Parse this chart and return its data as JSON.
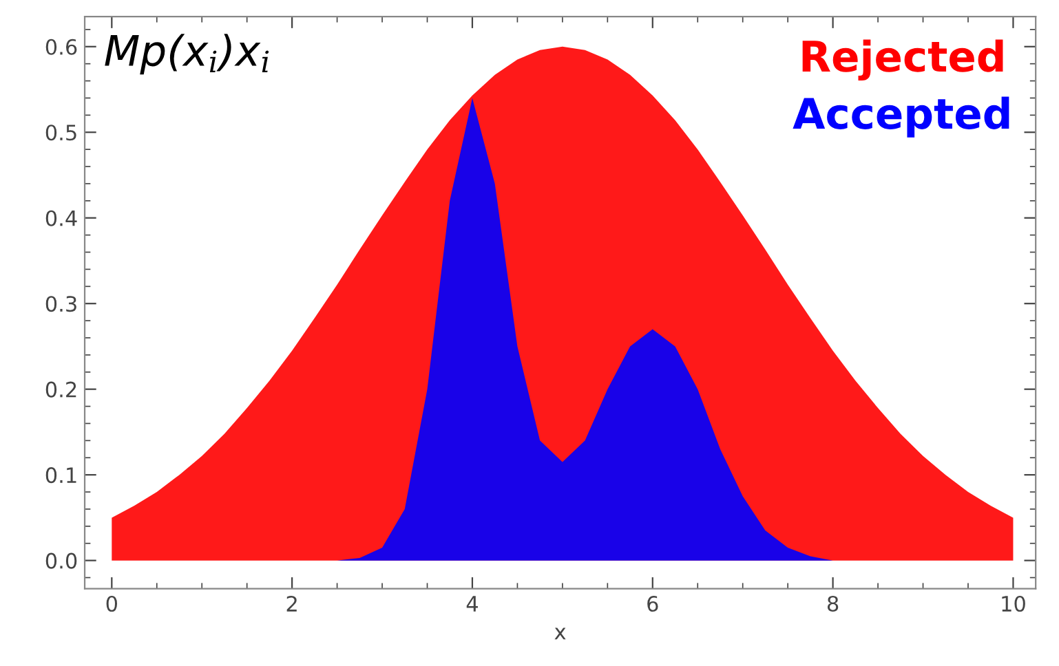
{
  "chart_data": {
    "type": "area",
    "xlabel": "x",
    "annotations": [
      "Mp(x$_{i}$)x$_{i}$"
    ],
    "series": [
      {
        "name": "Rejected",
        "color": "#ff0000",
        "x": [
          0,
          0.25,
          0.5,
          0.75,
          1,
          1.25,
          1.5,
          1.75,
          2,
          2.25,
          2.5,
          2.75,
          3,
          3.25,
          3.5,
          3.75,
          4,
          4.25,
          4.5,
          4.75,
          5,
          5.25,
          5.5,
          5.75,
          6,
          6.25,
          6.5,
          6.75,
          7,
          7.25,
          7.5,
          7.75,
          8,
          8.25,
          8.5,
          8.75,
          9,
          9.25,
          9.5,
          9.75,
          10
        ],
        "values": [
          0.05,
          0.064,
          0.08,
          0.1,
          0.122,
          0.148,
          0.178,
          0.21,
          0.245,
          0.283,
          0.322,
          0.363,
          0.403,
          0.442,
          0.48,
          0.514,
          0.543,
          0.567,
          0.585,
          0.596,
          0.6,
          0.596,
          0.585,
          0.567,
          0.543,
          0.514,
          0.48,
          0.442,
          0.403,
          0.363,
          0.322,
          0.283,
          0.245,
          0.21,
          0.178,
          0.148,
          0.122,
          0.1,
          0.08,
          0.064,
          0.05
        ]
      },
      {
        "name": "Accepted",
        "color": "#0000ff",
        "x": [
          0,
          1,
          2,
          2.5,
          2.75,
          3,
          3.25,
          3.5,
          3.75,
          4,
          4.25,
          4.5,
          4.75,
          5,
          5.25,
          5.5,
          5.75,
          6,
          6.25,
          6.5,
          6.75,
          7,
          7.25,
          7.5,
          7.75,
          8,
          9,
          10
        ],
        "values": [
          0,
          0,
          0,
          0,
          0.003,
          0.015,
          0.06,
          0.2,
          0.42,
          0.54,
          0.44,
          0.25,
          0.14,
          0.115,
          0.14,
          0.2,
          0.25,
          0.27,
          0.25,
          0.2,
          0.13,
          0.075,
          0.035,
          0.015,
          0.005,
          0,
          0,
          0
        ]
      }
    ],
    "xlim": [
      -0.3,
      10.25
    ],
    "ylim": [
      -0.033,
      0.635
    ],
    "xticks": [
      0,
      2,
      4,
      6,
      8,
      10
    ],
    "yticks": [
      {
        "value": 0,
        "label": "0.0"
      },
      {
        "value": 0.1,
        "label": "0.1"
      },
      {
        "value": 0.2,
        "label": "0.2"
      },
      {
        "value": 0.3,
        "label": "0.3"
      },
      {
        "value": 0.4,
        "label": "0.4"
      },
      {
        "value": 0.5,
        "label": "0.5"
      },
      {
        "value": 0.6,
        "label": "0.6"
      }
    ],
    "legend": "top right",
    "grid": false
  }
}
